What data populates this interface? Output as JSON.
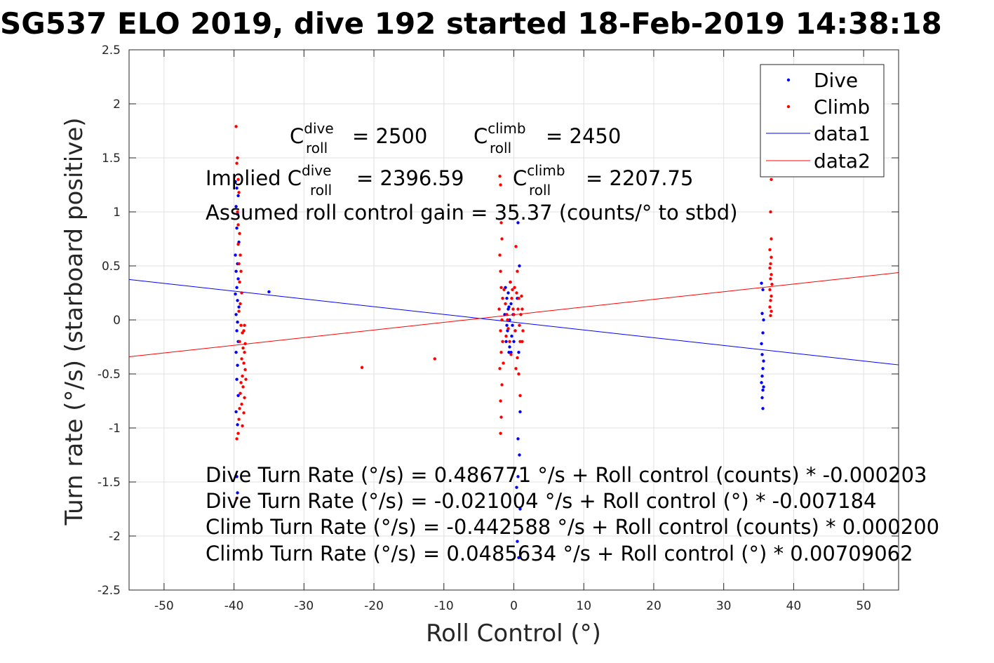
{
  "title": "SG537 ELO 2019, dive 192 started 18-Feb-2019 14:38:18",
  "colors": {
    "dive": "#0000ff",
    "climb": "#ff0000",
    "grid": "#e0e0e0",
    "axis": "#262626"
  },
  "annotations": {
    "c_dive_base": "C",
    "c_dive_sup": "dive",
    "c_dive_sub": "roll",
    "c_dive_value": "= 2500",
    "c_climb_base": "C",
    "c_climb_sup": "climb",
    "c_climb_sub": "roll",
    "c_climb_value": "= 2450",
    "implied_prefix": "Implied C",
    "implied_dive_sup": "dive",
    "implied_dive_sub": "roll",
    "implied_dive_value": "= 2396.59",
    "implied_climb_base": "C",
    "implied_climb_sup": "climb",
    "implied_climb_sub": "roll",
    "implied_climb_value": "= 2207.75",
    "gain": "Assumed roll control gain = 35.37 (counts/° to stbd)",
    "fit1": "Dive Turn Rate (°/s) = 0.486771 °/s + Roll control (counts) * -0.000203",
    "fit2": "Dive Turn Rate (°/s) = -0.021004 °/s + Roll control (°) * -0.007184",
    "fit3": "Climb Turn Rate (°/s) = -0.442588 °/s + Roll control (counts) * 0.000200",
    "fit4": "Climb Turn Rate (°/s) = 0.0485634 °/s + Roll control (°) * 0.00709062"
  },
  "chart_data": {
    "type": "scatter",
    "title": "SG537 ELO 2019, dive 192 started 18-Feb-2019 14:38:18",
    "xlabel": "Roll Control (°)",
    "ylabel": "Turn rate (°/s) (starboard positive)",
    "xlim": [
      -55,
      55
    ],
    "ylim": [
      -2.5,
      2.5
    ],
    "xticks": [
      -50,
      -40,
      -30,
      -20,
      -10,
      0,
      10,
      20,
      30,
      40,
      50
    ],
    "yticks": [
      -2.5,
      -2,
      -1.5,
      -1,
      -0.5,
      0,
      0.5,
      1,
      1.5,
      2,
      2.5
    ],
    "grid": true,
    "legend_position": "top-right",
    "legend": [
      "Dive",
      "Climb",
      "data1",
      "data2"
    ],
    "scatter_series": [
      {
        "name": "Dive",
        "color": "#0000ff",
        "points": [
          [
            -39.8,
            1.28
          ],
          [
            -39.6,
            1.22
          ],
          [
            -39.4,
            1.15
          ],
          [
            -39.7,
            1.05
          ],
          [
            -39.5,
            0.98
          ],
          [
            -39.6,
            0.85
          ],
          [
            -39.3,
            0.72
          ],
          [
            -39.8,
            0.6
          ],
          [
            -39.5,
            0.52
          ],
          [
            -39.7,
            0.45
          ],
          [
            -39.4,
            0.38
          ],
          [
            -39.6,
            0.3
          ],
          [
            -39.8,
            0.24
          ],
          [
            -39.5,
            0.18
          ],
          [
            -39.3,
            0.12
          ],
          [
            -39.7,
            0.05
          ],
          [
            -39.5,
            -0.02
          ],
          [
            -39.6,
            -0.1
          ],
          [
            -39.4,
            -0.2
          ],
          [
            -39.7,
            -0.3
          ],
          [
            -39.5,
            -0.42
          ],
          [
            -39.6,
            -0.55
          ],
          [
            -39.4,
            -0.7
          ],
          [
            -39.7,
            -0.85
          ],
          [
            -39.5,
            -0.97
          ],
          [
            -39.6,
            -1.45
          ],
          [
            -39.5,
            -1.6
          ],
          [
            -35,
            0.26
          ],
          [
            -1.2,
            0.3
          ],
          [
            -1.0,
            0.2
          ],
          [
            -0.8,
            0.1
          ],
          [
            -0.6,
            0.0
          ],
          [
            -0.9,
            -0.1
          ],
          [
            -1.1,
            -0.2
          ],
          [
            -0.7,
            -0.3
          ],
          [
            -0.4,
            0.15
          ],
          [
            -0.2,
            -0.05
          ],
          [
            0.0,
            -0.2
          ],
          [
            -0.5,
            0.35
          ],
          [
            -1.3,
            0.05
          ],
          [
            -0.3,
            -0.15
          ],
          [
            -0.6,
            -0.25
          ],
          [
            -0.8,
            0.25
          ],
          [
            -0.1,
            0.05
          ],
          [
            0.2,
            -0.1
          ],
          [
            -1.0,
            -0.05
          ],
          [
            -0.4,
            -0.3
          ],
          [
            -0.7,
            0.12
          ],
          [
            0.6,
            0.9
          ],
          [
            0.8,
            0.5
          ],
          [
            0.5,
            0.2
          ],
          [
            0.7,
            -0.3
          ],
          [
            0.9,
            -0.85
          ],
          [
            0.6,
            -1.1
          ],
          [
            0.8,
            -1.25
          ],
          [
            0.6,
            -1.45
          ],
          [
            0.5,
            -2.05
          ],
          [
            0.7,
            -2.2
          ],
          [
            0.9,
            -1.75
          ],
          [
            0.4,
            -1.55
          ],
          [
            35.4,
            0.34
          ],
          [
            35.6,
            0.28
          ],
          [
            35.5,
            0.06
          ],
          [
            35.7,
            0.0
          ],
          [
            35.6,
            -0.12
          ],
          [
            35.4,
            -0.22
          ],
          [
            35.5,
            -0.32
          ],
          [
            35.7,
            -0.38
          ],
          [
            35.6,
            -0.45
          ],
          [
            35.5,
            -0.52
          ],
          [
            35.4,
            -0.58
          ],
          [
            35.7,
            -0.62
          ],
          [
            35.6,
            -0.65
          ],
          [
            35.5,
            -0.72
          ],
          [
            35.6,
            -0.82
          ]
        ]
      },
      {
        "name": "Climb",
        "color": "#ff0000",
        "points": [
          [
            -39.7,
            1.79
          ],
          [
            -39.5,
            1.5
          ],
          [
            -39.6,
            1.45
          ],
          [
            -39.4,
            1.3
          ],
          [
            -39.3,
            1.18
          ],
          [
            -39.5,
            1.0
          ],
          [
            -39.4,
            0.88
          ],
          [
            -39.2,
            0.8
          ],
          [
            -39.4,
            0.7
          ],
          [
            -39.1,
            0.6
          ],
          [
            -39.3,
            0.52
          ],
          [
            -39.0,
            0.45
          ],
          [
            -39.2,
            0.35
          ],
          [
            -38.9,
            0.25
          ],
          [
            -39.1,
            0.15
          ],
          [
            -39.3,
            0.08
          ],
          [
            -39.0,
            -0.05
          ],
          [
            -38.8,
            -0.12
          ],
          [
            -39.2,
            -0.2
          ],
          [
            -38.7,
            -0.26
          ],
          [
            -38.5,
            -0.3
          ],
          [
            -38.9,
            -0.36
          ],
          [
            -38.6,
            -0.4
          ],
          [
            -38.4,
            -0.46
          ],
          [
            -38.8,
            -0.52
          ],
          [
            -39.0,
            -0.58
          ],
          [
            -38.7,
            -0.62
          ],
          [
            -39.1,
            -0.68
          ],
          [
            -38.5,
            -0.72
          ],
          [
            -38.9,
            -0.78
          ],
          [
            -39.2,
            -0.82
          ],
          [
            -38.6,
            -0.86
          ],
          [
            -39.3,
            -0.92
          ],
          [
            -38.8,
            -0.98
          ],
          [
            -39.4,
            -1.05
          ],
          [
            -39.6,
            -1.1
          ],
          [
            -38.4,
            -0.22
          ],
          [
            -38.3,
            -0.55
          ],
          [
            -38.6,
            -0.1
          ],
          [
            -38.5,
            -0.05
          ],
          [
            -39.6,
            -1.65
          ],
          [
            -21.7,
            -0.44
          ],
          [
            -11.3,
            -0.36
          ],
          [
            -2.0,
            1.33
          ],
          [
            -1.9,
            1.25
          ],
          [
            -1.8,
            0.9
          ],
          [
            -1.7,
            0.75
          ],
          [
            -2.0,
            0.6
          ],
          [
            -1.9,
            0.45
          ],
          [
            -1.8,
            0.3
          ],
          [
            -1.6,
            0.2
          ],
          [
            -2.1,
            0.1
          ],
          [
            -1.7,
            0.0
          ],
          [
            -1.9,
            -0.1
          ],
          [
            -1.6,
            -0.2
          ],
          [
            -1.8,
            -0.3
          ],
          [
            -2.0,
            -0.45
          ],
          [
            -1.7,
            -0.6
          ],
          [
            -1.9,
            -0.75
          ],
          [
            -1.8,
            -0.9
          ],
          [
            -1.9,
            -1.05
          ],
          [
            -1.2,
            0.15
          ],
          [
            -1.0,
            0.05
          ],
          [
            -0.8,
            -0.08
          ],
          [
            -1.4,
            0.28
          ],
          [
            -0.5,
            0.35
          ],
          [
            -0.3,
            0.2
          ],
          [
            -0.1,
            0.1
          ],
          [
            0.0,
            0.05
          ],
          [
            0.2,
            -0.1
          ],
          [
            -0.6,
            -0.2
          ],
          [
            -0.9,
            0.0
          ],
          [
            -1.1,
            -0.15
          ],
          [
            0.3,
            0.68
          ],
          [
            0.5,
            0.45
          ],
          [
            0.4,
            0.25
          ],
          [
            0.6,
            0.1
          ],
          [
            0.8,
            -0.05
          ],
          [
            0.7,
            0.2
          ],
          [
            0.9,
            -0.2
          ],
          [
            1.0,
            0.05
          ],
          [
            1.2,
            0.1
          ],
          [
            1.3,
            -0.1
          ],
          [
            1.1,
            0.22
          ],
          [
            0.5,
            -0.35
          ],
          [
            0.7,
            -0.5
          ],
          [
            0.9,
            -0.7
          ],
          [
            0.3,
            -0.45
          ],
          [
            -0.2,
            0.28
          ],
          [
            -0.4,
            -0.32
          ],
          [
            -1.5,
            -0.4
          ],
          [
            1.2,
            -0.2
          ],
          [
            0.1,
            0.3
          ],
          [
            36.8,
            1.3
          ],
          [
            36.7,
            1.0
          ],
          [
            36.8,
            0.75
          ],
          [
            36.6,
            0.65
          ],
          [
            36.8,
            0.58
          ],
          [
            36.7,
            0.52
          ],
          [
            36.6,
            0.48
          ],
          [
            36.8,
            0.42
          ],
          [
            36.7,
            0.38
          ],
          [
            36.9,
            0.33
          ],
          [
            36.6,
            0.28
          ],
          [
            36.8,
            0.22
          ],
          [
            36.7,
            0.18
          ],
          [
            36.6,
            0.12
          ],
          [
            36.8,
            0.08
          ],
          [
            36.7,
            0.04
          ]
        ]
      }
    ],
    "line_series": [
      {
        "name": "data1",
        "color": "#0000ff",
        "x": [
          -55,
          55
        ],
        "y": [
          0.374,
          -0.416
        ]
      },
      {
        "name": "data2",
        "color": "#ff0000",
        "x": [
          -55,
          55
        ],
        "y": [
          -0.341,
          0.438
        ]
      }
    ]
  }
}
